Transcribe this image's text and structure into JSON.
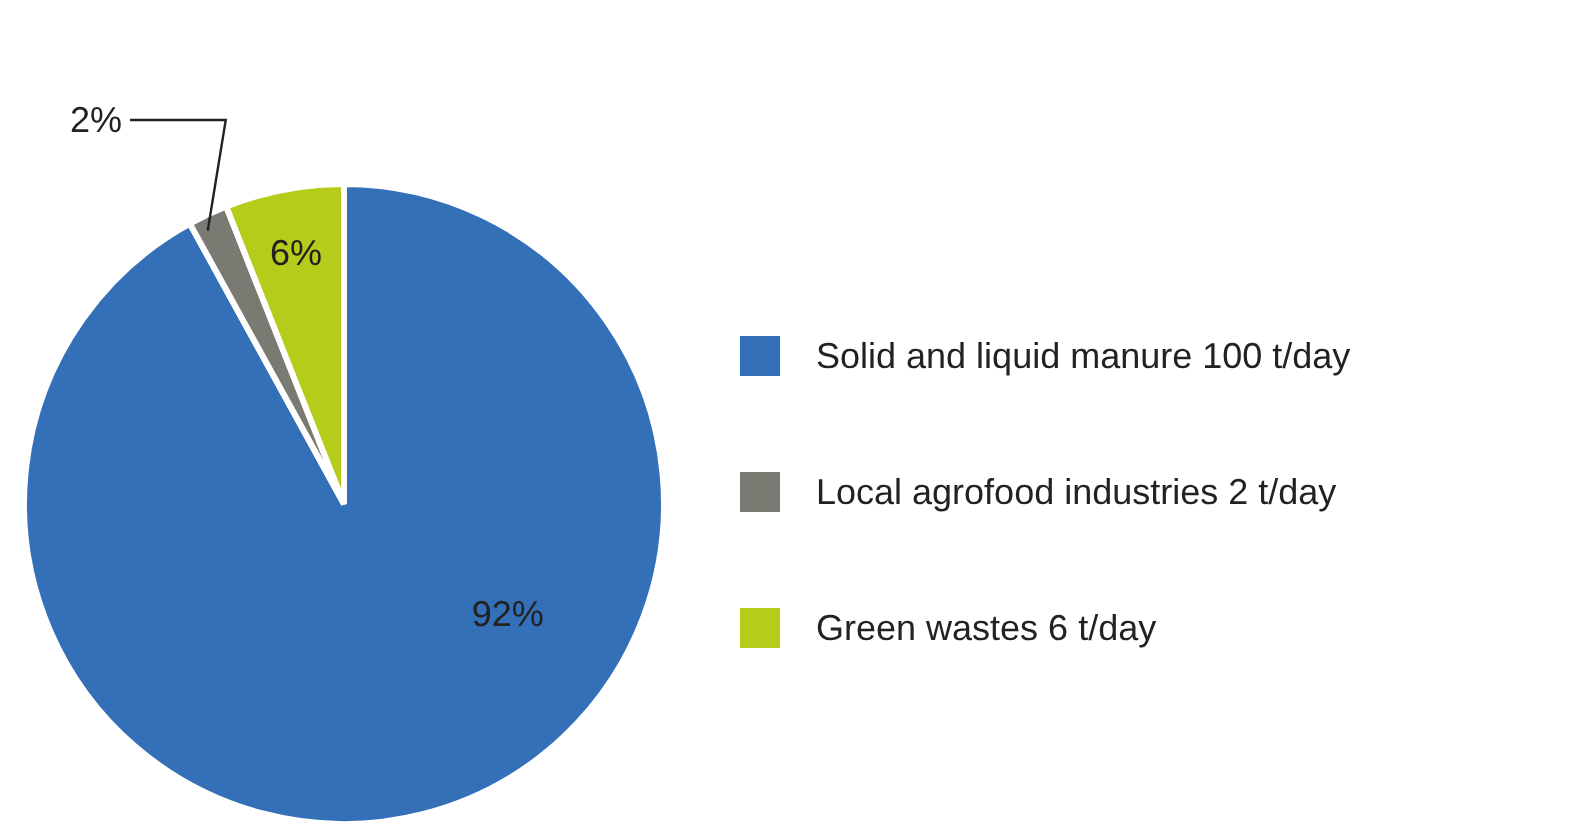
{
  "chart_data": {
    "type": "pie",
    "categories": [
      "Solid and liquid manure 100 t/day",
      "Local agrofood industries 2 t/day",
      "Green wastes 6 t/day"
    ],
    "values": [
      92,
      2,
      6
    ],
    "colors": [
      "#3470b8",
      "#7a7a72",
      "#b5cc1a"
    ],
    "value_labels": [
      "92%",
      "2%",
      "6%"
    ],
    "legend": "right"
  }
}
